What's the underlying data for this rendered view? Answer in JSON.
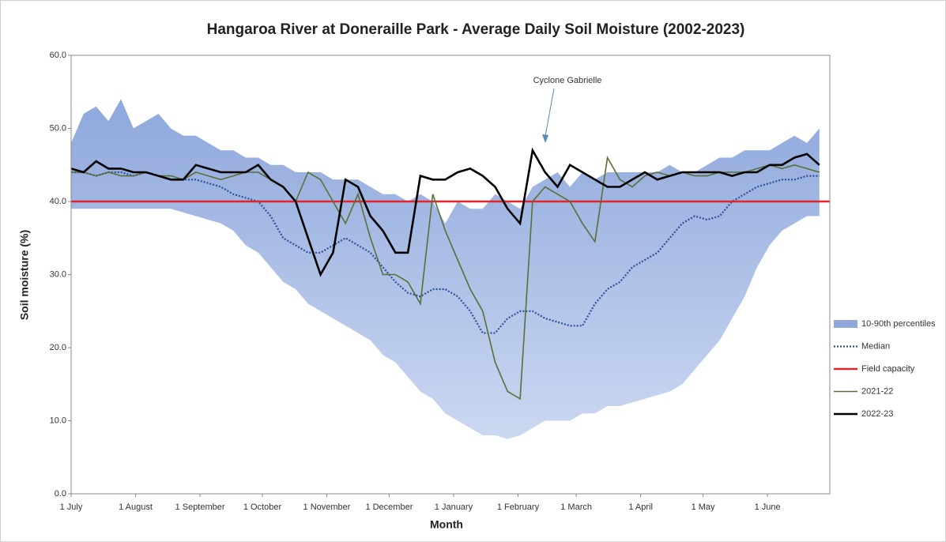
{
  "chart_data": {
    "type": "line",
    "title": "Hangaroa River at Doneraille Park - Average Daily Soil Moisture (2002-2023)",
    "x_label": "Month",
    "y_label": "Soil moisture (%)",
    "annotation": "Cyclone Gabrielle",
    "xlim": [
      0,
      365
    ],
    "xticks": [
      {
        "value": 0,
        "label": "1 July"
      },
      {
        "value": 31,
        "label": "1 August"
      },
      {
        "value": 62,
        "label": "1 September"
      },
      {
        "value": 92,
        "label": "1 October"
      },
      {
        "value": 123,
        "label": "1 November"
      },
      {
        "value": 153,
        "label": "1 December"
      },
      {
        "value": 184,
        "label": "1 January"
      },
      {
        "value": 215,
        "label": "1 February"
      },
      {
        "value": 243,
        "label": "1 March"
      },
      {
        "value": 274,
        "label": "1 April"
      },
      {
        "value": 304,
        "label": "1 May"
      },
      {
        "value": 335,
        "label": "1 June"
      }
    ],
    "ylim": [
      0,
      60
    ],
    "yticks": [
      {
        "value": 0,
        "label": "0.0"
      },
      {
        "value": 10,
        "label": "10.0"
      },
      {
        "value": 20,
        "label": "20.0"
      },
      {
        "value": 30,
        "label": "30.0"
      },
      {
        "value": 40,
        "label": "40.0"
      },
      {
        "value": 50,
        "label": "50.0"
      },
      {
        "value": 60,
        "label": "60.0"
      }
    ],
    "grid": false,
    "legend": "right",
    "x": [
      0,
      6,
      12,
      18,
      24,
      30,
      36,
      42,
      48,
      54,
      60,
      66,
      72,
      78,
      84,
      90,
      96,
      102,
      108,
      114,
      120,
      126,
      132,
      138,
      144,
      150,
      156,
      162,
      168,
      174,
      180,
      186,
      192,
      198,
      204,
      210,
      216,
      222,
      228,
      234,
      240,
      246,
      252,
      258,
      264,
      270,
      276,
      282,
      288,
      294,
      300,
      306,
      312,
      318,
      324,
      330,
      336,
      342,
      348,
      354,
      360
    ],
    "series": [
      {
        "name": "10-90th percentiles",
        "style": "band",
        "color": "#8ea8dc",
        "upper": [
          48,
          52,
          53,
          51,
          54,
          50,
          51,
          52,
          50,
          49,
          49,
          48,
          47,
          47,
          46,
          46,
          45,
          45,
          44,
          44,
          44,
          43,
          43,
          43,
          42,
          41,
          41,
          40,
          41,
          40,
          37,
          40,
          39,
          39,
          41,
          40,
          39,
          42,
          43,
          44,
          42,
          44,
          43,
          44,
          44,
          44,
          44,
          44,
          45,
          44,
          44,
          45,
          46,
          46,
          47,
          47,
          47,
          48,
          49,
          48,
          50
        ],
        "lower": [
          39,
          39,
          39,
          39,
          39,
          39,
          39,
          39,
          39,
          38.5,
          38,
          37.5,
          37,
          36,
          34,
          33,
          31,
          29,
          28,
          26,
          25,
          24,
          23,
          22,
          21,
          19,
          18,
          16,
          14,
          13,
          11,
          10,
          9,
          8,
          8,
          7.5,
          8,
          9,
          10,
          10,
          10,
          11,
          11,
          12,
          12,
          12.5,
          13,
          13.5,
          14,
          15,
          17,
          19,
          21,
          24,
          27,
          31,
          34,
          36,
          37,
          38,
          38
        ]
      },
      {
        "name": "Median",
        "style": "dotted",
        "color": "#2c4f99",
        "values": [
          44,
          44,
          43.5,
          44,
          44,
          43.5,
          44,
          43.5,
          43,
          43,
          43,
          42.5,
          42,
          41,
          40.5,
          40,
          38,
          35,
          34,
          33,
          33,
          34,
          35,
          34,
          33,
          31,
          29,
          27.5,
          27,
          28,
          28,
          27,
          25,
          22,
          22,
          24,
          25,
          25,
          24,
          23.5,
          23,
          23,
          26,
          28,
          29,
          31,
          32,
          33,
          35,
          37,
          38,
          37.5,
          38,
          40,
          41,
          42,
          42.5,
          43,
          43,
          43.5,
          43.5
        ]
      },
      {
        "name": "Field capacity",
        "style": "hline",
        "color": "#e3242b",
        "value": 40
      },
      {
        "name": "2021-22",
        "style": "line",
        "color": "#5b6e38",
        "values": [
          44,
          44,
          43.5,
          44,
          43.5,
          43.5,
          44,
          43.5,
          43.5,
          43,
          44,
          43.5,
          43,
          43.5,
          44,
          44,
          43,
          42,
          40,
          44,
          43,
          40,
          37,
          41,
          35,
          30,
          30,
          29,
          26,
          41,
          36,
          32,
          28,
          25,
          18,
          14,
          13,
          40,
          42,
          41,
          40,
          37,
          34.5,
          46,
          43,
          42,
          43.5,
          44,
          43.5,
          44,
          43.5,
          43.5,
          44,
          44,
          44,
          44.5,
          45,
          44.5,
          45,
          44.5,
          44
        ]
      },
      {
        "name": "2022-23",
        "style": "bold",
        "color": "#000000",
        "values": [
          44.5,
          44,
          45.5,
          44.5,
          44.5,
          44,
          44,
          43.5,
          43,
          43,
          45,
          44.5,
          44,
          44,
          44,
          45,
          43,
          42,
          40,
          35,
          30,
          33,
          43,
          42,
          38,
          36,
          33,
          33,
          43.5,
          43,
          43,
          44,
          44.5,
          43.5,
          42,
          39,
          37,
          47,
          44,
          42,
          45,
          44,
          43,
          42,
          42,
          43,
          44,
          43,
          43.5,
          44,
          44,
          44,
          44,
          43.5,
          44,
          44,
          45,
          45,
          46,
          46.5,
          45
        ]
      }
    ]
  }
}
